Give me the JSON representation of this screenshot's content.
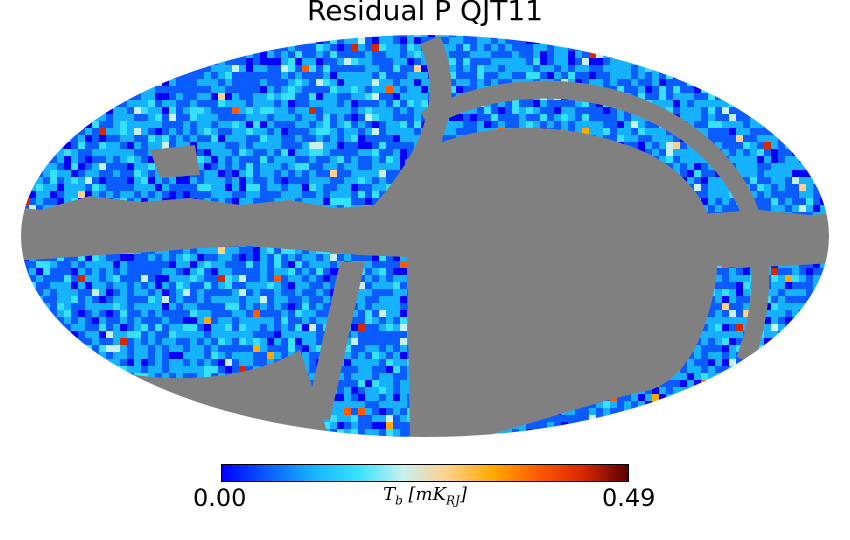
{
  "chart_data": {
    "type": "heatmap",
    "projection": "mollweide",
    "title": "Residual P QJT11",
    "colorbar": {
      "min_label": "0.00",
      "max_label": "0.49",
      "vmin": 0.0,
      "vmax": 0.49,
      "label_symbol": "T",
      "label_sub": "b",
      "label_unit": "[mK",
      "label_unit_sub": "RJ",
      "label_close": "]",
      "colors": [
        "#0000ff",
        "#0a5cff",
        "#17b2ff",
        "#36e1ff",
        "#c7f0f0",
        "#ffd08a",
        "#ffaa00",
        "#ff5a00",
        "#d82800",
        "#5a0000"
      ]
    },
    "masked_color": "#808080",
    "background_value_typical": 0.08,
    "masked_regions": [
      "galactic plane band",
      "large southern-east region",
      "two arc-shaped strips"
    ],
    "hotspots": [
      {
        "region": "north, near arc edge",
        "value": 0.45
      },
      {
        "region": "south, narrow strip top",
        "value": 0.42
      },
      {
        "region": "north-east arc",
        "value": 0.46
      }
    ]
  }
}
